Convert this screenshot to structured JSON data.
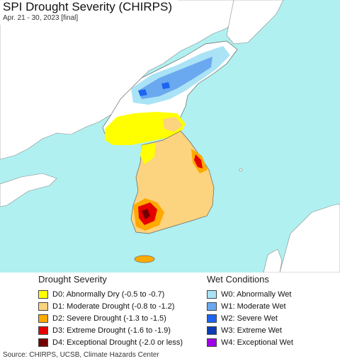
{
  "header": {
    "title": "SPI Drought Severity (CHIRPS)",
    "subtitle": "Apr. 21 - 30, 2023 [final]"
  },
  "map": {
    "colors": {
      "sea": "#b0f0f0",
      "land_other": "#ffffff",
      "border": "#666666"
    }
  },
  "legend": {
    "drought": {
      "heading": "Drought Severity",
      "items": [
        {
          "label": "D0: Abnormally Dry (-0.5 to -0.7)",
          "color": "#ffff00"
        },
        {
          "label": "D1: Moderate Drought (-0.8 to -1.2)",
          "color": "#fcd37f"
        },
        {
          "label": "D2: Severe Drought (-1.3 to -1.5)",
          "color": "#ffaa00"
        },
        {
          "label": "D3: Extreme Drought (-1.6 to -1.9)",
          "color": "#e60000"
        },
        {
          "label": "D4: Exceptional Drought (-2.0 or less)",
          "color": "#730000"
        }
      ]
    },
    "wet": {
      "heading": "Wet Conditions",
      "items": [
        {
          "label": "W0: Abnormally Wet",
          "color": "#aae3f5"
        },
        {
          "label": "W1: Moderate Wet",
          "color": "#6aa8f0"
        },
        {
          "label": "W2: Severe Wet",
          "color": "#1e64f0"
        },
        {
          "label": "W3: Extreme Wet",
          "color": "#0a3cb4"
        },
        {
          "label": "W4: Exceptional Wet",
          "color": "#a000e6"
        }
      ]
    }
  },
  "footer": {
    "source": "Source: CHIRPS, UCSB, Climate Hazards Center"
  }
}
